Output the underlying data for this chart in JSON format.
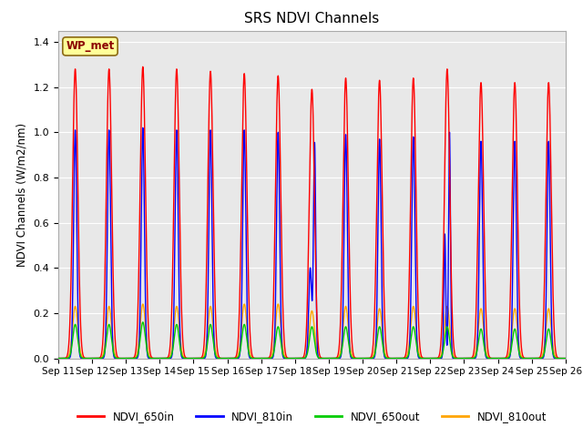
{
  "title": "SRS NDVI Channels",
  "ylabel": "NDVI Channels (W/m2/nm)",
  "annotation": "WP_met",
  "annotation_color": "#8B0000",
  "annotation_bg": "#FFFF99",
  "annotation_border": "#8B6914",
  "xlim_start": 11,
  "xlim_end": 26,
  "ylim_min": 0.0,
  "ylim_max": 1.45,
  "yticks": [
    0.0,
    0.2,
    0.4,
    0.6,
    0.8,
    1.0,
    1.2,
    1.4
  ],
  "xtick_labels": [
    "Sep 11",
    "Sep 12",
    "Sep 13",
    "Sep 14",
    "Sep 15",
    "Sep 16",
    "Sep 17",
    "Sep 18",
    "Sep 19",
    "Sep 20",
    "Sep 21",
    "Sep 22",
    "Sep 23",
    "Sep 24",
    "Sep 25",
    "Sep 26"
  ],
  "colors": {
    "NDVI_650in": "#FF0000",
    "NDVI_810in": "#0000FF",
    "NDVI_650out": "#00CC00",
    "NDVI_810out": "#FFA500"
  },
  "linewidth": 1.0,
  "background_color": "#E8E8E8",
  "grid_color": "#FFFFFF",
  "legend_labels": [
    "NDVI_650in",
    "NDVI_810in",
    "NDVI_650out",
    "NDVI_810out"
  ],
  "peaks_650in": [
    1.28,
    1.28,
    1.29,
    1.28,
    1.27,
    1.26,
    1.25,
    1.19,
    1.24,
    1.23,
    1.24,
    1.28,
    1.22,
    1.22,
    1.22
  ],
  "peaks_810in": [
    1.01,
    1.01,
    1.02,
    1.01,
    1.01,
    1.01,
    1.0,
    0.4,
    0.99,
    0.97,
    0.98,
    1.0,
    0.96,
    0.96,
    0.96
  ],
  "peaks_650out": [
    0.15,
    0.15,
    0.16,
    0.15,
    0.15,
    0.15,
    0.14,
    0.14,
    0.14,
    0.14,
    0.14,
    0.14,
    0.13,
    0.13,
    0.13
  ],
  "peaks_810out": [
    0.23,
    0.23,
    0.24,
    0.23,
    0.23,
    0.24,
    0.24,
    0.21,
    0.23,
    0.22,
    0.23,
    0.23,
    0.22,
    0.22,
    0.22
  ],
  "sigma_big": 0.055,
  "sigma_small": 0.07,
  "sep18_810in_peak1": 0.4,
  "sep18_810in_peak2": 0.95,
  "sep22_810in_dip": 0.55,
  "num_days": 15,
  "start_day": 11
}
